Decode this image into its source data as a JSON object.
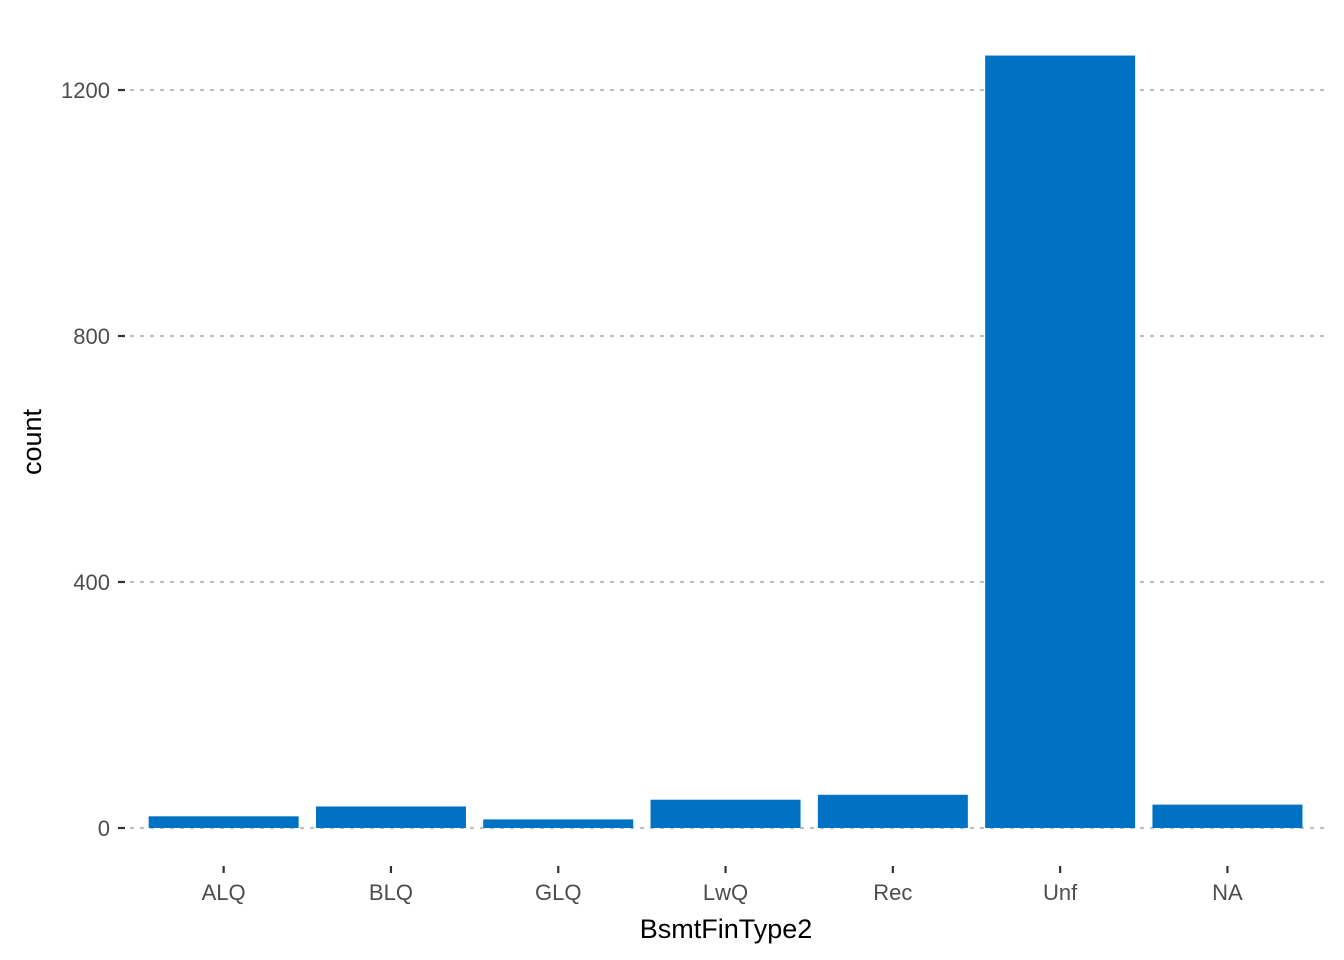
{
  "chart_data": {
    "type": "bar",
    "categories": [
      "ALQ",
      "BLQ",
      "GLQ",
      "LwQ",
      "Rec",
      "Unf",
      "NA"
    ],
    "values": [
      19,
      35,
      14,
      46,
      54,
      1256,
      38
    ],
    "xlabel": "BsmtFinType2",
    "ylabel": "count",
    "ylim": [
      -60,
      1320
    ],
    "yticks": [
      0,
      400,
      800,
      1200
    ],
    "ytick_labels": [
      "0",
      "400",
      "800",
      "1200"
    ],
    "grid": "horizontal dotted major gridlines",
    "bar_color": "#0072C4",
    "gridline_color": "#BDBDBD",
    "tick_label_color": "#4D4D4D",
    "background": "#FFFFFF"
  }
}
